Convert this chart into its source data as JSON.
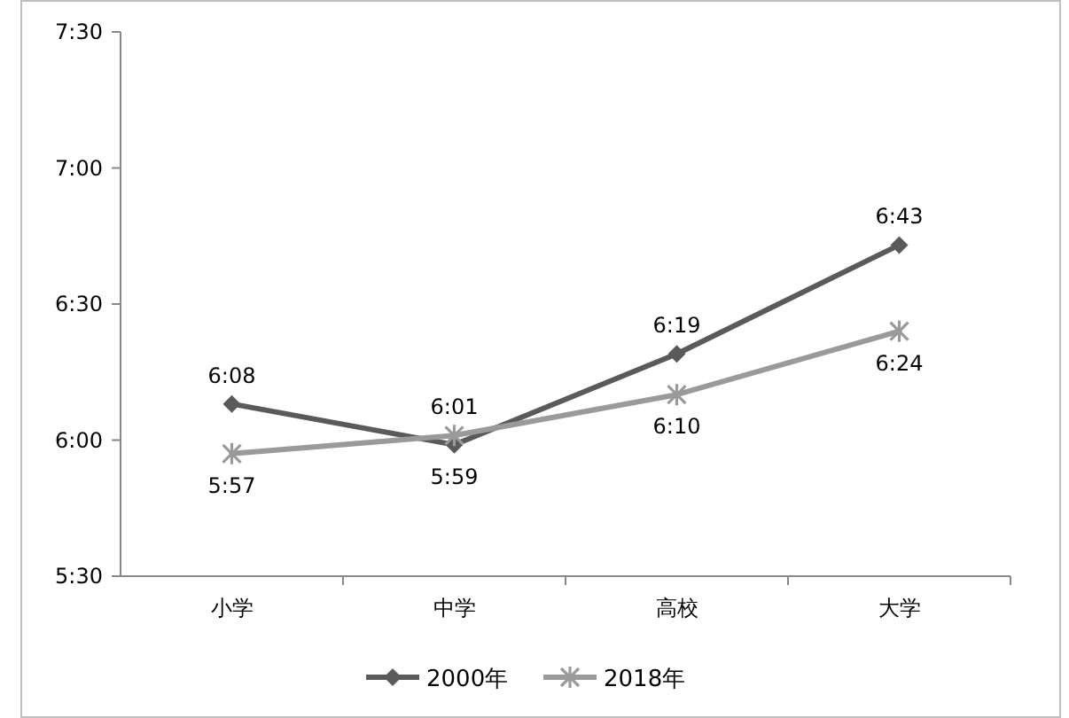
{
  "chart_data": {
    "type": "line",
    "categories": [
      "小学",
      "中学",
      "高校",
      "大学"
    ],
    "series": [
      {
        "name": "2000年",
        "color": "#5a5a5a",
        "marker": "diamond",
        "values": [
          6.133,
          5.983,
          6.317,
          6.717
        ],
        "value_labels": [
          "6:08",
          "5:59",
          "6:19",
          "6:43"
        ]
      },
      {
        "name": "2018年",
        "color": "#9a9a9a",
        "marker": "cross",
        "values": [
          5.95,
          6.017,
          6.167,
          6.4
        ],
        "value_labels": [
          "5:57",
          "6:01",
          "6:10",
          "6:24"
        ]
      }
    ],
    "ylim": [
      5.5,
      7.5
    ],
    "yticks": [
      {
        "value": 5.5,
        "label": "5:30"
      },
      {
        "value": 6,
        "label": "6:00"
      },
      {
        "value": 6.5,
        "label": "6:30"
      },
      {
        "value": 7,
        "label": "7:00"
      },
      {
        "value": 7.5,
        "label": "7:30"
      }
    ],
    "grid": false,
    "legend": "bottom"
  }
}
